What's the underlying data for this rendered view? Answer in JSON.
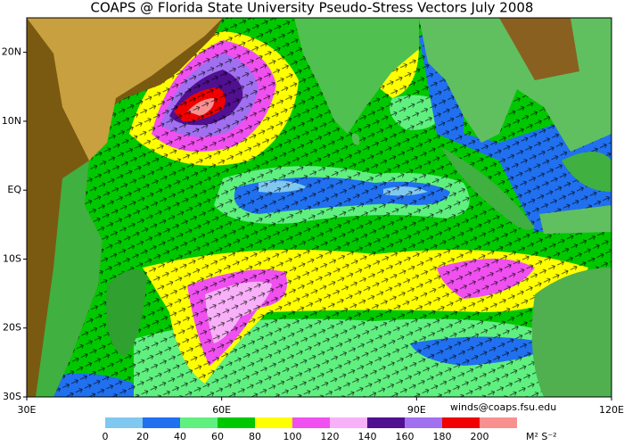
{
  "title": "COAPS @ Florida State University Pseudo-Stress Vectors July 2008",
  "map": {
    "xlim": [
      30,
      120
    ],
    "ylim": [
      -30,
      25
    ],
    "xticks": [
      {
        "value": 30,
        "label": "30E"
      },
      {
        "value": 60,
        "label": "60E"
      },
      {
        "value": 90,
        "label": "90E"
      },
      {
        "value": 120,
        "label": "120E"
      }
    ],
    "yticks": [
      {
        "value": 20,
        "label": "20N"
      },
      {
        "value": 10,
        "label": "10N"
      },
      {
        "value": 0,
        "label": "EQ"
      },
      {
        "value": -10,
        "label": "10S"
      },
      {
        "value": -20,
        "label": "20S"
      },
      {
        "value": -30,
        "label": "30S"
      }
    ]
  },
  "credit": "winds@coaps.fsu.edu",
  "colorbar": {
    "ticks": [
      0,
      20,
      40,
      60,
      80,
      100,
      120,
      140,
      160,
      180,
      200
    ],
    "colors": [
      "#80c8f0",
      "#2070f0",
      "#60f080",
      "#00c800",
      "#ffff00",
      "#f050f0",
      "#f8b0f8",
      "#501090",
      "#a070f0",
      "#f00000",
      "#f89090"
    ],
    "unit_label": "M² S⁻²"
  }
}
